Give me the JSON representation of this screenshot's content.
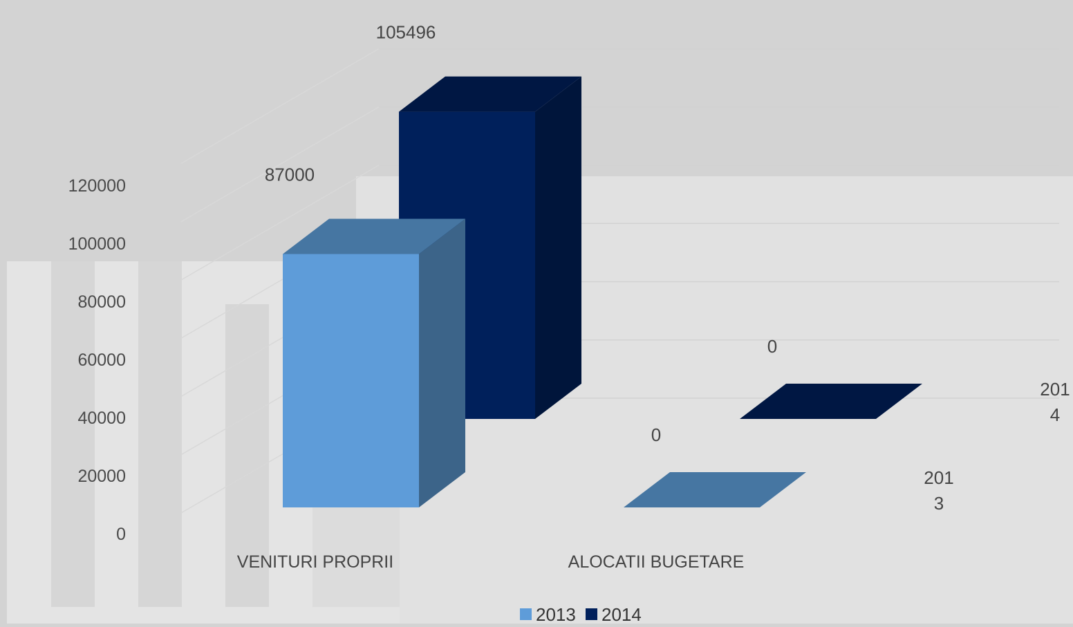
{
  "chart_data": {
    "type": "bar",
    "title": "",
    "xlabel": "",
    "ylabel": "",
    "categories": [
      "VENITURI PROPRII",
      "ALOCATII BUGETARE"
    ],
    "series": [
      {
        "name": "2013",
        "values": [
          87000,
          0
        ],
        "depth_label": [
          "201",
          "3"
        ]
      },
      {
        "name": "2014",
        "values": [
          105496,
          0
        ],
        "depth_label": [
          "201",
          "4"
        ]
      }
    ],
    "y_ticks": [
      "0",
      "20000",
      "40000",
      "60000",
      "80000",
      "100000",
      "120000"
    ],
    "ylim": [
      0,
      120000
    ],
    "legend_position": "bottom",
    "grid": true,
    "colors": {
      "2013": {
        "front": "#5e9cd9",
        "top": "#4676a2",
        "side": "#3c6489"
      },
      "2014": {
        "front": "#00205b",
        "top": "#001743",
        "side": "#00153b"
      }
    }
  }
}
